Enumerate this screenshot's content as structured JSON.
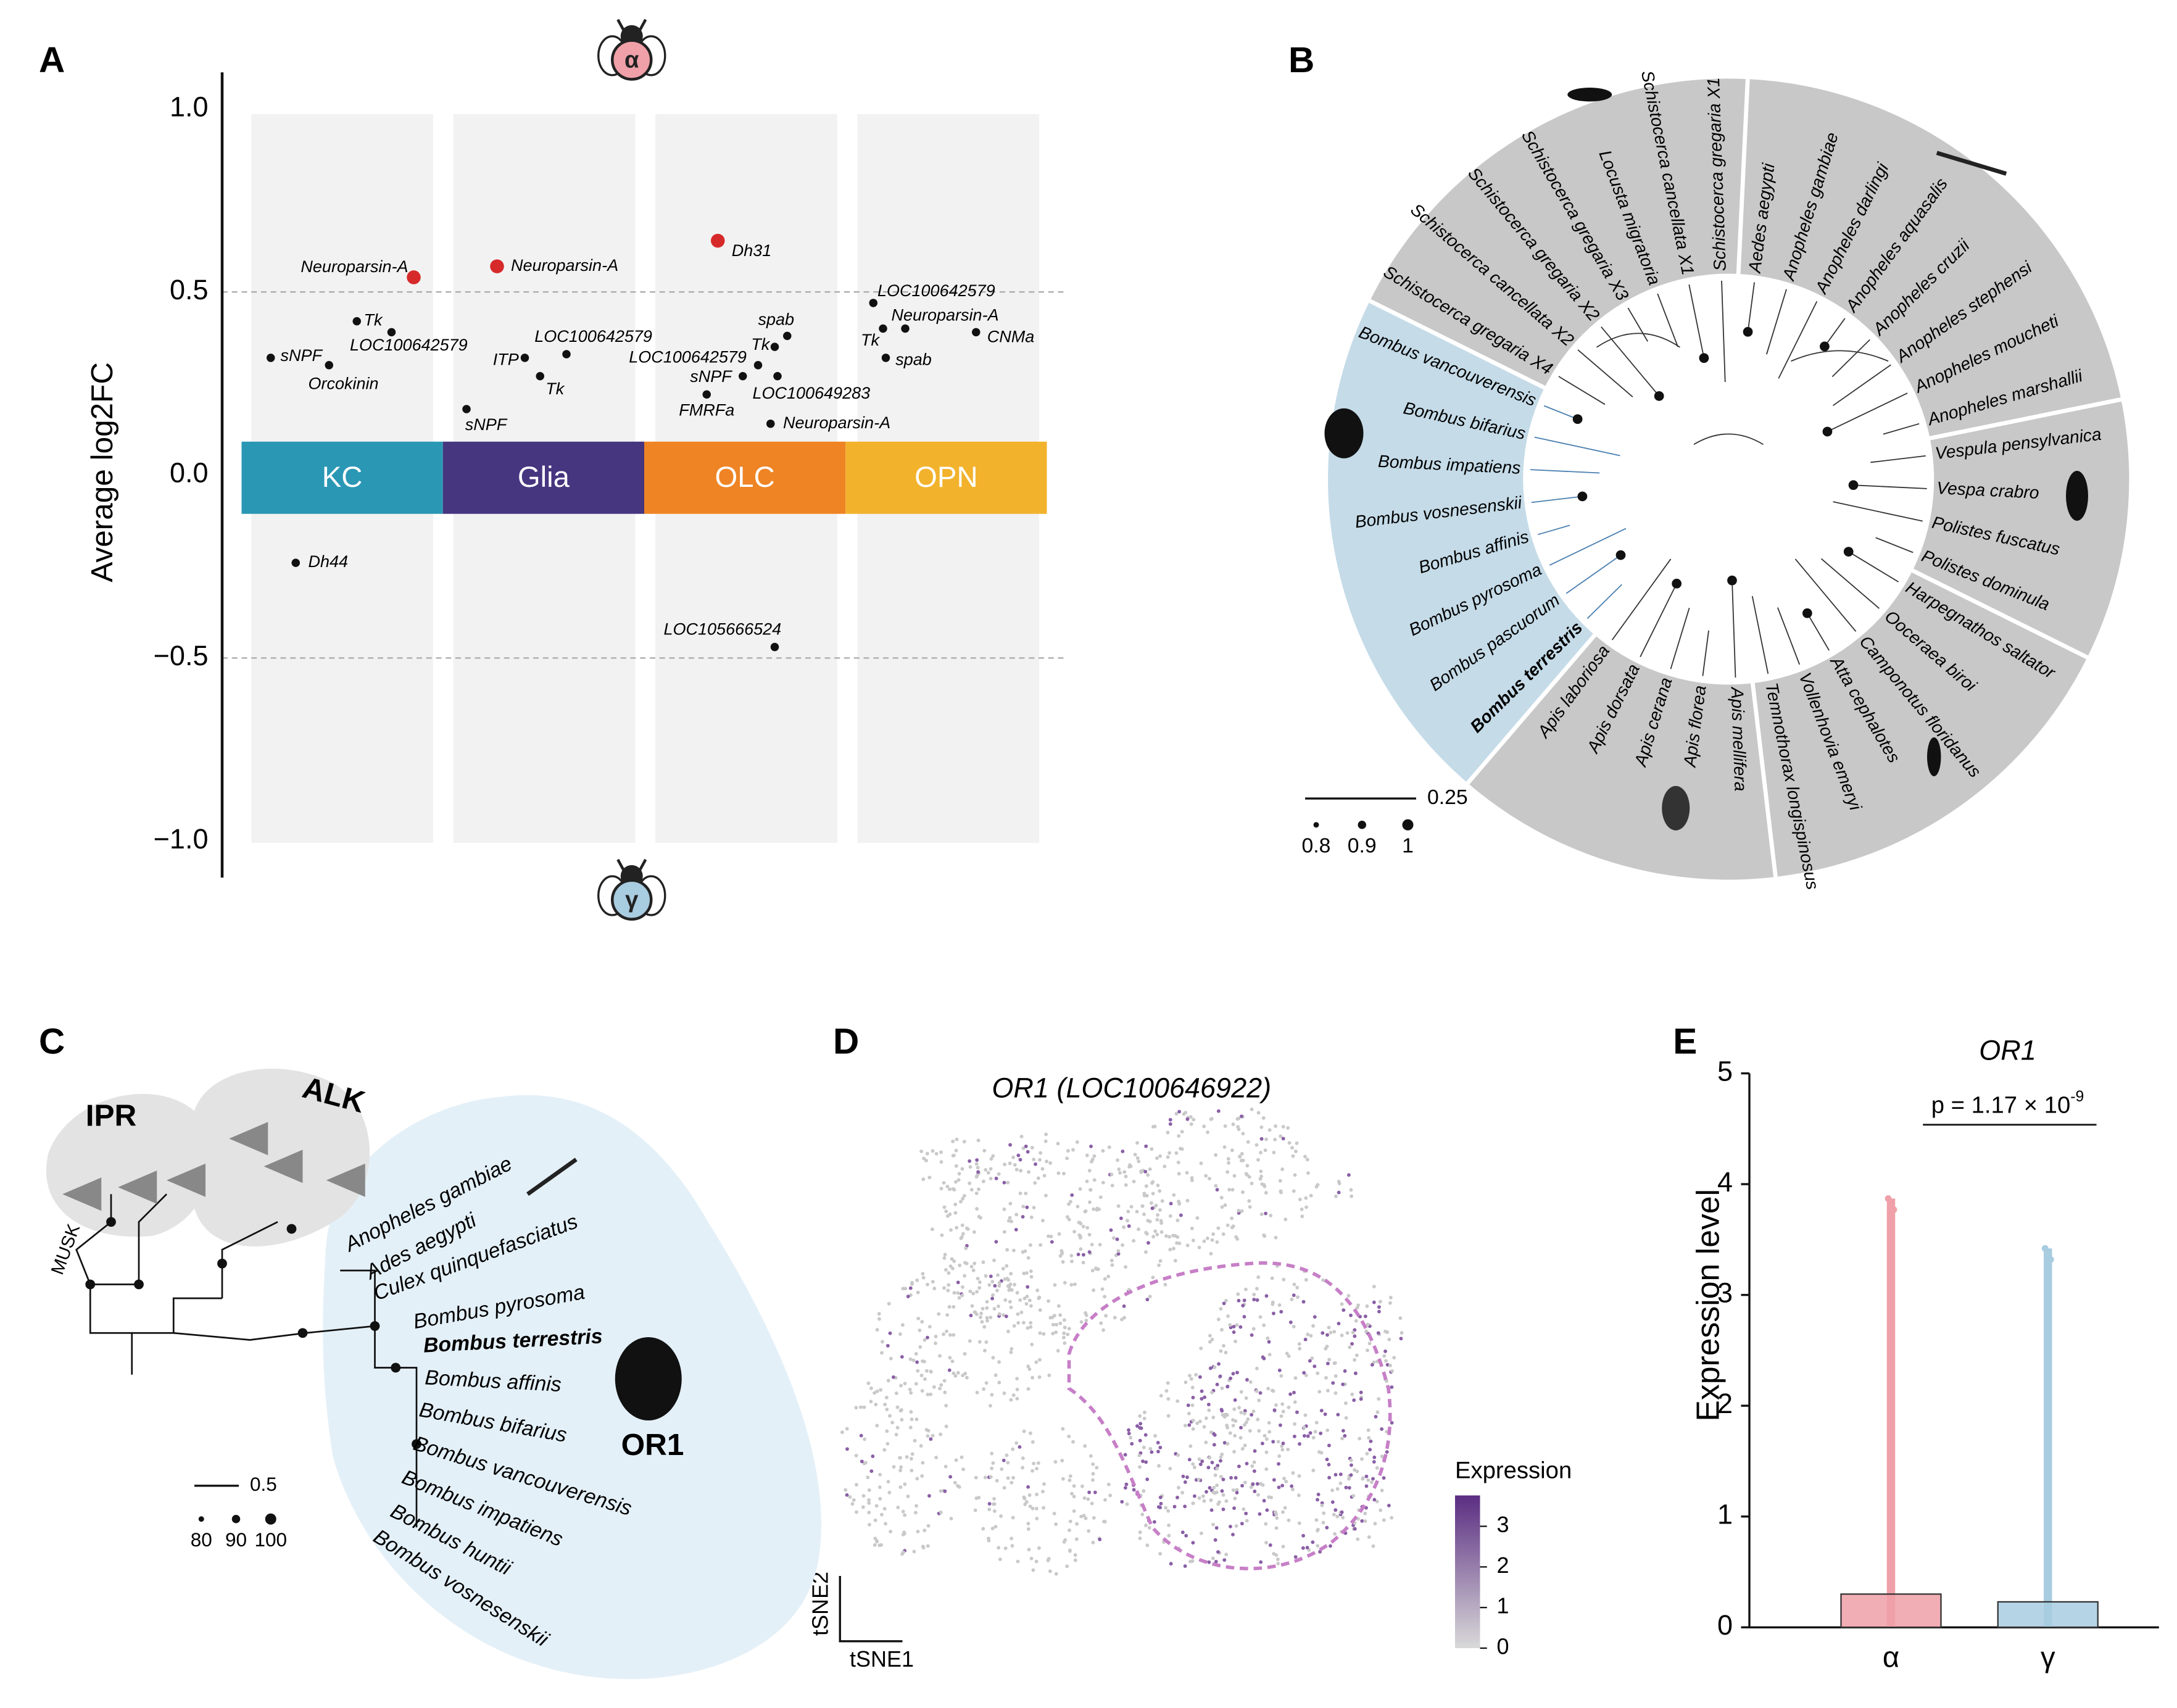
{
  "panel_labels": [
    "A",
    "B",
    "C",
    "D",
    "E"
  ],
  "chart_data": [
    {
      "type": "dot",
      "ylabel": "Average log2FC",
      "ylim": [
        -1.1,
        1.1
      ],
      "yticks": [
        {
          "value": 1,
          "label": "1.0"
        },
        0.5,
        {
          "value": 0,
          "label": "0.0"
        },
        {
          "value": -0.5,
          "label": "−0.5"
        },
        {
          "value": -1,
          "label": "−1.0"
        }
      ],
      "hlines": [
        0.5,
        -0.5
      ],
      "top_icon_label": "α",
      "bottom_icon_label": "γ",
      "categories": [
        "KC",
        "Glia",
        "OLC",
        "OPN"
      ],
      "category_colors": [
        "#2a97b5",
        "#46357f",
        "#ee8424",
        "#f2b22c"
      ],
      "points": [
        {
          "labels": [
            "Neuroparsin-A",
            "Tk",
            "LOC100642579",
            "sNPF",
            "Orcokinin",
            "Dh44"
          ],
          "values": [
            0.54,
            0.42,
            0.39,
            0.32,
            0.3,
            -0.24
          ],
          "colors": [
            "#d62a2a",
            "#111111",
            "#111111",
            "#111111",
            "#111111",
            "#111111"
          ]
        },
        {
          "labels": [
            "Neuroparsin-A",
            "LOC100642579",
            "ITP",
            "Tk",
            "sNPF"
          ],
          "values": [
            0.57,
            0.33,
            0.32,
            0.27,
            0.18
          ],
          "colors": [
            "#d62a2a",
            "#111111",
            "#111111",
            "#111111",
            "#111111"
          ]
        },
        {
          "labels": [
            "Dh31",
            "spab",
            "Tk",
            "LOC100642579",
            "sNPF",
            "LOC100649283",
            "FMRFa",
            "Neuroparsin-A",
            "LOC105666524"
          ],
          "values": [
            0.64,
            0.38,
            0.35,
            0.3,
            0.27,
            0.27,
            0.22,
            0.14,
            -0.47
          ],
          "colors": [
            "#d62a2a",
            "#111111",
            "#111111",
            "#111111",
            "#111111",
            "#111111",
            "#111111",
            "#111111",
            "#111111"
          ]
        },
        {
          "labels": [
            "LOC100642579",
            "Neuroparsin-A",
            "Tk",
            "CNMa",
            "spab"
          ],
          "values": [
            0.47,
            0.4,
            0.4,
            0.39,
            0.32
          ],
          "colors": [
            "#111111",
            "#111111",
            "#111111",
            "#111111",
            "#111111"
          ]
        }
      ]
    },
    {
      "type": "tsne",
      "title": "OR1 (LOC100646922)",
      "xlabel": "tSNE1",
      "ylabel": "tSNE2",
      "colorbar_title": "Expression",
      "clim": [
        0,
        3.76
      ],
      "cticks": [
        0,
        1,
        2,
        3
      ]
    },
    {
      "type": "bar",
      "title": "OR1",
      "ylabel": "Expression level",
      "ylim": [
        0,
        5
      ],
      "yticks": [
        0,
        1,
        2,
        3,
        4,
        5
      ],
      "categories": [
        "α",
        "γ"
      ],
      "values": [
        0.3,
        0.23
      ],
      "point_max": [
        3.87,
        3.42
      ],
      "colors": [
        "#f0a0a8",
        "#a8cce0"
      ],
      "p_text": "p = 1.17 × 10",
      "p_exponent": "-9"
    }
  ],
  "tree_b": {
    "labels": [
      "Schistocerca gregaria X1",
      "Aedes aegypti",
      "Anopheles gambiae",
      "Anopheles darlingi",
      "Anopheles aquasalis",
      "Anopheles cruzii",
      "Anopheles stephensi",
      "Anopheles moucheti",
      "Anopheles marshallii",
      "Vespula pensylvanica",
      "Vespa crabro",
      "Polistes fuscatus",
      "Polistes dominula",
      "Harpegnathos saltator",
      "Ooceraea biroi",
      "Camponotus floridanus",
      "Atta cephalotes",
      "Vollenhovia emeryi",
      "Temnothorax longispinosus",
      "Apis mellifera",
      "Apis florea",
      "Apis cerana",
      "Apis dorsata",
      "Apis laboriosa",
      "Bombus terrestris",
      "Bombus pascuorum",
      "Bombus pyrosoma",
      "Bombus affinis",
      "Bombus vosnesenskii",
      "Bombus impatiens",
      "Bombus bifarius",
      "Bombus vancouverensis",
      "Schistocerca gregaria X4",
      "Schistocerca cancellata X2",
      "Schistocerca gregaria X2",
      "Schistocerca gregaria X3",
      "Locusta migratoria",
      "Schistocerca cancellata X1"
    ],
    "bold_index": 24,
    "scale_bar": 0.25,
    "support_legend": [
      0.8,
      0.9,
      1
    ]
  },
  "tree_c": {
    "labels": [
      "Anopheles gambiae",
      "Ades aegypti",
      "Culex quinquefasciatus",
      "Bombus pyrosoma",
      "Bombus terrestris",
      "Bombus affinis",
      "Bombus bifarius",
      "Bombus vancouverensis",
      "Bombus impatiens",
      "Bombus huntii",
      "Bombus vosnesenskii"
    ],
    "bold_index": 4,
    "group_ipr": "IPR",
    "group_alk": "ALK",
    "group_or1": "OR1",
    "group_musk": "MUSK",
    "scale_bar": 0.5,
    "support_legend": [
      80,
      90,
      100
    ]
  }
}
